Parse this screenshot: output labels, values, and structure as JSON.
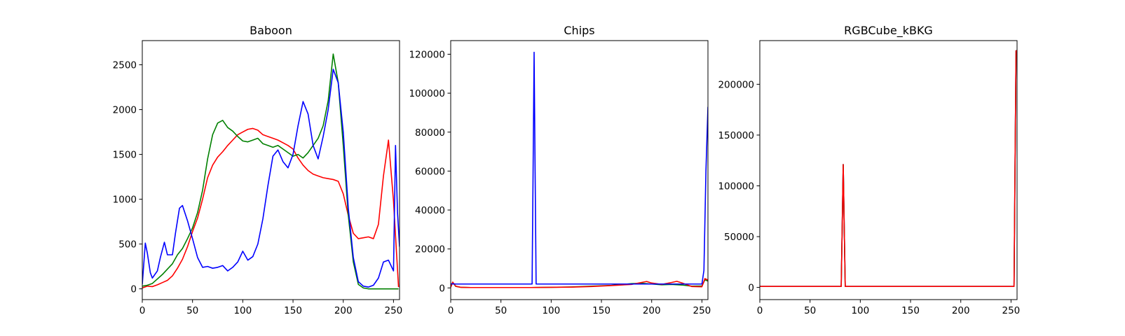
{
  "chart_data": [
    {
      "type": "line",
      "title": "Baboon",
      "xlim": [
        0,
        256
      ],
      "ylim": [
        -120,
        2770
      ],
      "xticks": [
        0,
        50,
        100,
        150,
        200,
        250
      ],
      "yticks": [
        0,
        500,
        1000,
        1500,
        2000,
        2500
      ],
      "series": [
        {
          "color": "#ff0000",
          "x": [
            0,
            5,
            10,
            15,
            20,
            25,
            30,
            35,
            40,
            45,
            50,
            55,
            60,
            65,
            70,
            75,
            80,
            85,
            90,
            95,
            100,
            105,
            110,
            115,
            120,
            125,
            130,
            135,
            140,
            145,
            150,
            155,
            160,
            165,
            170,
            175,
            180,
            185,
            190,
            195,
            200,
            205,
            210,
            215,
            220,
            225,
            230,
            235,
            240,
            245,
            250,
            255
          ],
          "y": [
            10,
            30,
            25,
            45,
            70,
            95,
            145,
            230,
            330,
            470,
            640,
            790,
            1000,
            1240,
            1380,
            1470,
            1530,
            1600,
            1660,
            1720,
            1750,
            1780,
            1790,
            1770,
            1720,
            1700,
            1680,
            1660,
            1630,
            1600,
            1560,
            1460,
            1380,
            1320,
            1280,
            1260,
            1240,
            1230,
            1220,
            1200,
            1060,
            820,
            620,
            560,
            570,
            580,
            560,
            720,
            1260,
            1660,
            980,
            20
          ]
        },
        {
          "color": "#008000",
          "x": [
            0,
            5,
            10,
            15,
            20,
            25,
            30,
            35,
            40,
            45,
            50,
            55,
            60,
            65,
            70,
            75,
            80,
            85,
            90,
            95,
            100,
            105,
            110,
            115,
            120,
            125,
            130,
            135,
            140,
            145,
            150,
            155,
            160,
            165,
            170,
            175,
            180,
            185,
            190,
            195,
            200,
            205,
            210,
            215,
            220,
            225,
            230,
            235,
            240,
            245,
            250,
            255
          ],
          "y": [
            30,
            40,
            60,
            110,
            160,
            220,
            280,
            380,
            450,
            560,
            680,
            850,
            1100,
            1450,
            1720,
            1850,
            1880,
            1800,
            1760,
            1700,
            1650,
            1640,
            1660,
            1680,
            1620,
            1600,
            1580,
            1600,
            1560,
            1520,
            1480,
            1500,
            1460,
            1520,
            1600,
            1680,
            1820,
            2100,
            2620,
            2300,
            1600,
            820,
            300,
            50,
            10,
            0,
            0,
            0,
            0,
            0,
            0,
            0
          ]
        },
        {
          "color": "#0000ff",
          "x": [
            0,
            3,
            5,
            8,
            10,
            15,
            18,
            22,
            25,
            30,
            33,
            37,
            40,
            45,
            50,
            55,
            60,
            65,
            70,
            75,
            80,
            85,
            90,
            95,
            100,
            105,
            110,
            115,
            120,
            125,
            130,
            135,
            140,
            145,
            150,
            155,
            160,
            165,
            170,
            175,
            180,
            185,
            190,
            195,
            200,
            205,
            210,
            215,
            220,
            225,
            230,
            235,
            240,
            245,
            250,
            252,
            254,
            256
          ],
          "y": [
            50,
            510,
            400,
            180,
            120,
            200,
            350,
            520,
            380,
            380,
            620,
            900,
            930,
            760,
            560,
            350,
            240,
            250,
            230,
            240,
            260,
            200,
            240,
            300,
            420,
            320,
            360,
            500,
            780,
            1150,
            1480,
            1550,
            1420,
            1350,
            1500,
            1820,
            2090,
            1950,
            1600,
            1450,
            1700,
            2000,
            2450,
            2300,
            1750,
            900,
            350,
            80,
            30,
            20,
            40,
            120,
            300,
            320,
            200,
            1600,
            850,
            470
          ]
        }
      ]
    },
    {
      "type": "line",
      "title": "Chips",
      "xlim": [
        0,
        256
      ],
      "ylim": [
        -6000,
        127000
      ],
      "xticks": [
        0,
        50,
        100,
        150,
        200,
        250
      ],
      "yticks": [
        0,
        20000,
        40000,
        60000,
        80000,
        100000,
        120000
      ],
      "series": [
        {
          "color": "#008000",
          "x": [
            0,
            2,
            5,
            10,
            20,
            50,
            80,
            100,
            120,
            140,
            160,
            180,
            190,
            200,
            210,
            220,
            230,
            240,
            250,
            253,
            256
          ],
          "y": [
            500,
            2800,
            800,
            300,
            200,
            200,
            200,
            300,
            500,
            900,
            1300,
            2200,
            2400,
            2000,
            1600,
            1800,
            1500,
            900,
            1000,
            4200,
            3500
          ]
        },
        {
          "color": "#ff0000",
          "x": [
            0,
            2,
            5,
            10,
            20,
            50,
            80,
            100,
            120,
            140,
            160,
            180,
            190,
            195,
            200,
            210,
            220,
            225,
            230,
            240,
            250,
            253,
            256
          ],
          "y": [
            300,
            3000,
            900,
            300,
            200,
            200,
            200,
            300,
            400,
            700,
            1200,
            1800,
            2800,
            3300,
            2500,
            1800,
            2800,
            3400,
            2600,
            700,
            600,
            4800,
            4000
          ]
        },
        {
          "color": "#0000ff",
          "x": [
            0,
            2,
            5,
            81,
            82,
            83,
            84,
            85,
            86,
            100,
            150,
            200,
            250,
            252,
            254,
            256
          ],
          "y": [
            2000,
            2100,
            2000,
            2000,
            60000,
            121000,
            60000,
            2000,
            2000,
            2000,
            2000,
            2000,
            2000,
            9000,
            60000,
            93000
          ]
        }
      ]
    },
    {
      "type": "line",
      "title": "RGBCube_kBKG",
      "xlim": [
        0,
        256
      ],
      "ylim": [
        -12000,
        243000
      ],
      "xticks": [
        0,
        50,
        100,
        150,
        200,
        250
      ],
      "yticks": [
        0,
        50000,
        100000,
        150000,
        200000
      ],
      "series": [
        {
          "color": "#0000ff",
          "x": [
            0,
            81,
            82,
            83,
            84,
            85,
            86,
            253,
            254,
            255,
            256
          ],
          "y": [
            1000,
            1000,
            60000,
            121000,
            60000,
            1000,
            1000,
            1000,
            120000,
            233000,
            233000
          ]
        },
        {
          "color": "#008000",
          "x": [
            0,
            81,
            82,
            83,
            84,
            85,
            86,
            253,
            254,
            255,
            256
          ],
          "y": [
            1000,
            1000,
            60000,
            121000,
            60000,
            1000,
            1000,
            1000,
            120000,
            233000,
            233000
          ]
        },
        {
          "color": "#ff0000",
          "x": [
            0,
            81,
            82,
            83,
            84,
            85,
            86,
            253,
            254,
            255,
            256
          ],
          "y": [
            1000,
            1000,
            60000,
            121000,
            60000,
            1000,
            1000,
            1000,
            120000,
            233000,
            233000
          ]
        }
      ]
    }
  ]
}
